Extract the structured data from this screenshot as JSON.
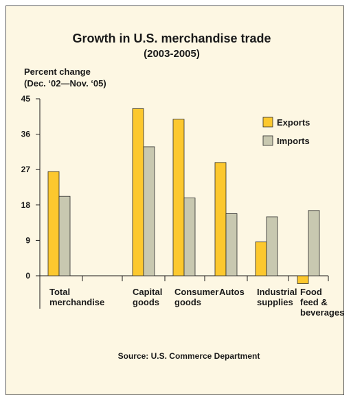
{
  "chart_data": {
    "type": "bar",
    "title": "Growth in U.S. merchandise trade",
    "subtitle": "(2003-2005)",
    "ylabel_line1": "Percent change",
    "ylabel_line2": "(Dec. ‘02—Nov. ‘05)",
    "ylim": [
      0,
      45
    ],
    "yticks": [
      0,
      9,
      18,
      27,
      36,
      45
    ],
    "grid": false,
    "legend_position": "top-right",
    "categories": [
      [
        "Total",
        "merchandise"
      ],
      [
        "Capital",
        "goods"
      ],
      [
        "Consumer",
        "goods"
      ],
      [
        "Autos"
      ],
      [
        "Industrial",
        "supplies"
      ],
      [
        "Food",
        "feed &",
        "beverages"
      ]
    ],
    "series": [
      {
        "name": "Exports",
        "color": "#fcc82e",
        "values": [
          26.5,
          42.5,
          39.8,
          28.8,
          8.6,
          -2.0
        ]
      },
      {
        "name": "Imports",
        "color": "#c8c8b0",
        "values": [
          20.2,
          32.8,
          19.8,
          15.8,
          15.0,
          16.6
        ]
      }
    ],
    "source": "Source: U.S. Commerce Department"
  }
}
